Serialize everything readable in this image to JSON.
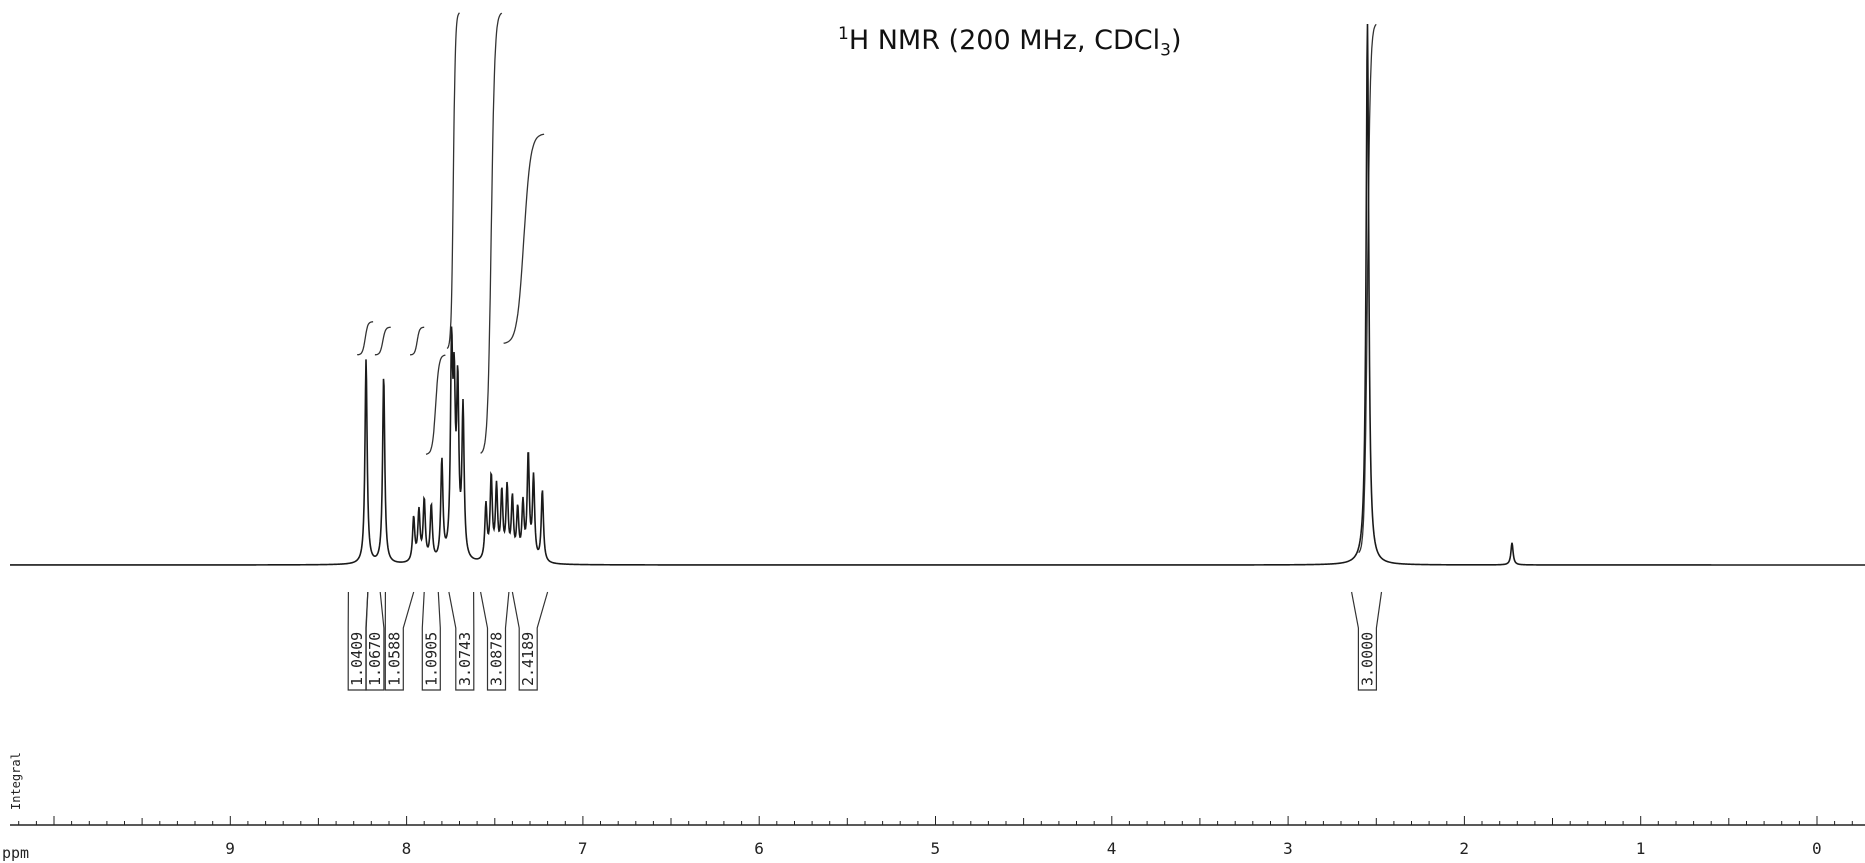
{
  "chart_data": {
    "type": "line",
    "title_parts": {
      "sup": "1",
      "main": "H NMR (200 MHz, CDCl",
      "sub": "3",
      "end": ")"
    },
    "xlabel": "ppm",
    "integral_axis_label": "Integral",
    "x_range": [
      10.5,
      -0.25
    ],
    "x_reversed": true,
    "x_ticks": [
      9,
      8,
      7,
      6,
      5,
      4,
      3,
      2,
      1,
      0
    ],
    "grid": false,
    "peaks": [
      {
        "ppm": 8.23,
        "height": 0.37
      },
      {
        "ppm": 8.13,
        "height": 0.34
      },
      {
        "ppm": 7.96,
        "height": 0.08
      },
      {
        "ppm": 7.93,
        "height": 0.09
      },
      {
        "ppm": 7.9,
        "height": 0.11
      },
      {
        "ppm": 7.86,
        "height": 0.1
      },
      {
        "ppm": 7.8,
        "height": 0.18
      },
      {
        "ppm": 7.745,
        "height": 0.36
      },
      {
        "ppm": 7.73,
        "height": 0.27
      },
      {
        "ppm": 7.71,
        "height": 0.3
      },
      {
        "ppm": 7.68,
        "height": 0.27
      },
      {
        "ppm": 7.55,
        "height": 0.1
      },
      {
        "ppm": 7.52,
        "height": 0.15
      },
      {
        "ppm": 7.49,
        "height": 0.13
      },
      {
        "ppm": 7.46,
        "height": 0.12
      },
      {
        "ppm": 7.43,
        "height": 0.13
      },
      {
        "ppm": 7.4,
        "height": 0.11
      },
      {
        "ppm": 7.37,
        "height": 0.09
      },
      {
        "ppm": 7.34,
        "height": 0.1
      },
      {
        "ppm": 7.31,
        "height": 0.19
      },
      {
        "ppm": 7.28,
        "height": 0.15
      },
      {
        "ppm": 7.23,
        "height": 0.13
      },
      {
        "ppm": 2.55,
        "height": 0.98
      },
      {
        "ppm": 1.73,
        "height": 0.04
      }
    ],
    "integral_curve_segments": [
      {
        "ppm": [
          8.28,
          8.19
        ],
        "from": 0.38,
        "to": 0.44
      },
      {
        "ppm": [
          8.18,
          8.09
        ],
        "from": 0.38,
        "to": 0.43
      },
      {
        "ppm": [
          7.98,
          7.9
        ],
        "from": 0.38,
        "to": 0.43
      },
      {
        "ppm": [
          7.89,
          7.78
        ],
        "from": 0.2,
        "to": 0.38
      },
      {
        "ppm": [
          7.77,
          7.7
        ],
        "from": 0.39,
        "to": 1.0
      },
      {
        "ppm": [
          7.58,
          7.46
        ],
        "from": 0.2,
        "to": 1.0
      },
      {
        "ppm": [
          7.45,
          7.22
        ],
        "from": 0.4,
        "to": 0.78
      },
      {
        "ppm": [
          2.6,
          2.5
        ],
        "from": 0.02,
        "to": 0.98
      }
    ],
    "integrals": [
      {
        "label": "1.0409",
        "ppm_center": 8.28,
        "ppm_from": 8.33,
        "ppm_to": 8.22
      },
      {
        "label": "1.0670",
        "ppm_center": 8.18,
        "ppm_from": 8.22,
        "ppm_to": 8.15
      },
      {
        "label": "1.0588",
        "ppm_center": 8.07,
        "ppm_from": 8.12,
        "ppm_to": 7.96
      },
      {
        "label": "1.0905",
        "ppm_center": 7.86,
        "ppm_from": 7.9,
        "ppm_to": 7.82
      },
      {
        "label": "3.0743",
        "ppm_center": 7.67,
        "ppm_from": 7.76,
        "ppm_to": 7.62
      },
      {
        "label": "3.0878",
        "ppm_center": 7.49,
        "ppm_from": 7.58,
        "ppm_to": 7.42
      },
      {
        "label": "2.4189",
        "ppm_center": 7.31,
        "ppm_from": 7.4,
        "ppm_to": 7.2
      },
      {
        "label": "3.0000",
        "ppm_center": 2.55,
        "ppm_from": 2.64,
        "ppm_to": 2.47
      }
    ],
    "colors": {
      "trace": "#1a1a1a",
      "axis": "#222222",
      "background": "#ffffff"
    }
  }
}
